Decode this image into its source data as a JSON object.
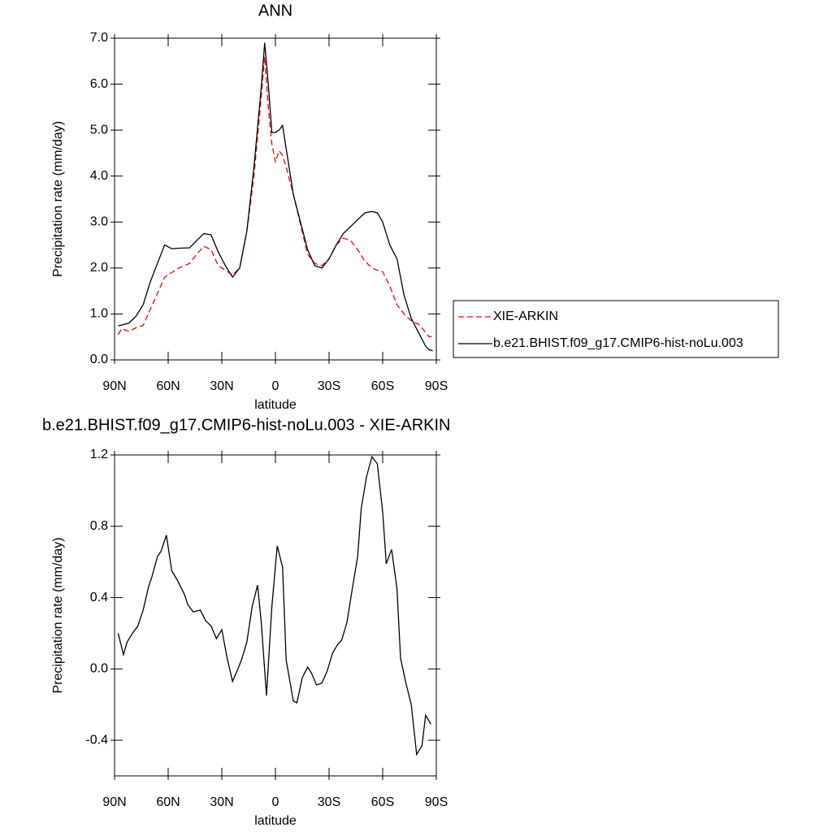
{
  "chart_data": [
    {
      "type": "line",
      "title": "ANN",
      "x_label": "latitude",
      "y_label": "Precipitation rate (mm/day)",
      "x": [
        88,
        86,
        82,
        78,
        74,
        70,
        66,
        62,
        58,
        54,
        48,
        44,
        40,
        36,
        32,
        28,
        24,
        20,
        16,
        12,
        8,
        6,
        4,
        2,
        0,
        -2,
        -4,
        -6,
        -10,
        -14,
        -18,
        -22,
        -26,
        -30,
        -34,
        -38,
        -42,
        -46,
        -50,
        -54,
        -57,
        -60,
        -64,
        -68,
        -72,
        -76,
        -80,
        -84,
        -86,
        -88
      ],
      "series": [
        {
          "name": "XIE-ARKIN",
          "color": "#ff0000",
          "dashed": true,
          "values": [
            0.55,
            0.68,
            0.62,
            0.7,
            0.75,
            1.1,
            1.45,
            1.8,
            1.9,
            2.0,
            2.1,
            2.3,
            2.47,
            2.4,
            2.05,
            1.95,
            1.85,
            2.0,
            2.8,
            4.0,
            5.7,
            6.6,
            5.5,
            4.7,
            4.3,
            4.55,
            4.45,
            4.2,
            3.6,
            2.95,
            2.3,
            2.1,
            2.05,
            2.2,
            2.5,
            2.65,
            2.6,
            2.4,
            2.15,
            2.0,
            1.95,
            1.92,
            1.6,
            1.2,
            1.0,
            0.85,
            0.78,
            0.6,
            0.5,
            0.52
          ]
        },
        {
          "name": "b.e21.BHIST.f09_g17.CMIP6-hist-noLu.003",
          "color": "#000000",
          "dashed": false,
          "values": [
            0.74,
            0.76,
            0.8,
            0.95,
            1.2,
            1.7,
            2.1,
            2.5,
            2.42,
            2.43,
            2.44,
            2.6,
            2.75,
            2.72,
            2.35,
            2.05,
            1.8,
            2.0,
            2.8,
            4.2,
            5.9,
            6.9,
            6.0,
            4.95,
            4.95,
            5.0,
            5.1,
            4.6,
            3.6,
            3.0,
            2.4,
            2.05,
            2.0,
            2.2,
            2.5,
            2.75,
            2.9,
            3.05,
            3.2,
            3.23,
            3.2,
            3.0,
            2.5,
            2.2,
            1.4,
            0.9,
            0.6,
            0.3,
            0.22,
            0.2
          ]
        }
      ],
      "xlim": [
        90,
        -90
      ],
      "xticks": [
        {
          "value": 90,
          "label": "90N"
        },
        {
          "value": 60,
          "label": "60N"
        },
        {
          "value": 30,
          "label": "30N"
        },
        0,
        {
          "value": -30,
          "label": "30S"
        },
        {
          "value": -60,
          "label": "60S"
        },
        {
          "value": -90,
          "label": "90S"
        }
      ],
      "ylim": [
        0,
        7
      ],
      "yticks": [
        {
          "value": 0,
          "label": "0.0"
        },
        {
          "value": 1,
          "label": "1.0"
        },
        {
          "value": 2,
          "label": "2.0"
        },
        {
          "value": 3,
          "label": "3.0"
        },
        {
          "value": 4,
          "label": "4.0"
        },
        {
          "value": 5,
          "label": "5.0"
        },
        {
          "value": 6,
          "label": "6.0"
        },
        {
          "value": 7,
          "label": "7.0"
        }
      ],
      "legend": "right"
    },
    {
      "type": "line",
      "title": "b.e21.BHIST.f09_g17.CMIP6-hist-noLu.003 - XIE-ARKIN",
      "x_label": "latitude",
      "y_label": "Precipitation rate (mm/day)",
      "x": [
        88,
        85,
        83,
        80,
        77,
        74,
        71,
        69,
        66,
        64,
        61,
        58,
        55,
        51,
        49,
        46,
        42,
        39,
        36,
        33,
        30,
        27,
        24,
        21,
        19,
        16,
        13,
        10,
        8,
        5,
        2,
        -1,
        -4,
        -6,
        -10,
        -12,
        -15,
        -18,
        -20,
        -23,
        -26,
        -29,
        -32,
        -35,
        -37,
        -40,
        -43,
        -46,
        -48,
        -51,
        -54,
        -57,
        -60,
        -62,
        -65,
        -68,
        -70,
        -73,
        -76,
        -79,
        -82,
        -84,
        -87
      ],
      "series": [
        {
          "color": "#000000",
          "dashed": false,
          "values": [
            0.2,
            0.08,
            0.15,
            0.2,
            0.24,
            0.33,
            0.46,
            0.52,
            0.63,
            0.66,
            0.75,
            0.55,
            0.5,
            0.42,
            0.36,
            0.32,
            0.33,
            0.27,
            0.24,
            0.17,
            0.22,
            0.06,
            -0.07,
            0,
            0.05,
            0.15,
            0.35,
            0.47,
            0.27,
            -0.15,
            0.35,
            0.69,
            0.57,
            0.05,
            -0.18,
            -0.19,
            -0.05,
            0.01,
            -0.02,
            -0.09,
            -0.08,
            -0.01,
            0.09,
            0.14,
            0.16,
            0.26,
            0.45,
            0.63,
            0.9,
            1.08,
            1.19,
            1.15,
            0.88,
            0.59,
            0.67,
            0.45,
            0.06,
            -0.08,
            -0.2,
            -0.48,
            -0.43,
            -0.26,
            -0.31
          ]
        }
      ],
      "xlim": [
        90,
        -90
      ],
      "xticks": [
        {
          "value": 90,
          "label": "90N"
        },
        {
          "value": 60,
          "label": "60N"
        },
        {
          "value": 30,
          "label": "30N"
        },
        0,
        {
          "value": -30,
          "label": "30S"
        },
        {
          "value": -60,
          "label": "60S"
        },
        {
          "value": -90,
          "label": "90S"
        }
      ],
      "ylim": [
        -0.6,
        1.2
      ],
      "yticks": [
        -0.4,
        {
          "value": 0,
          "label": "0.0"
        },
        0.4,
        0.8,
        1.2
      ]
    }
  ]
}
